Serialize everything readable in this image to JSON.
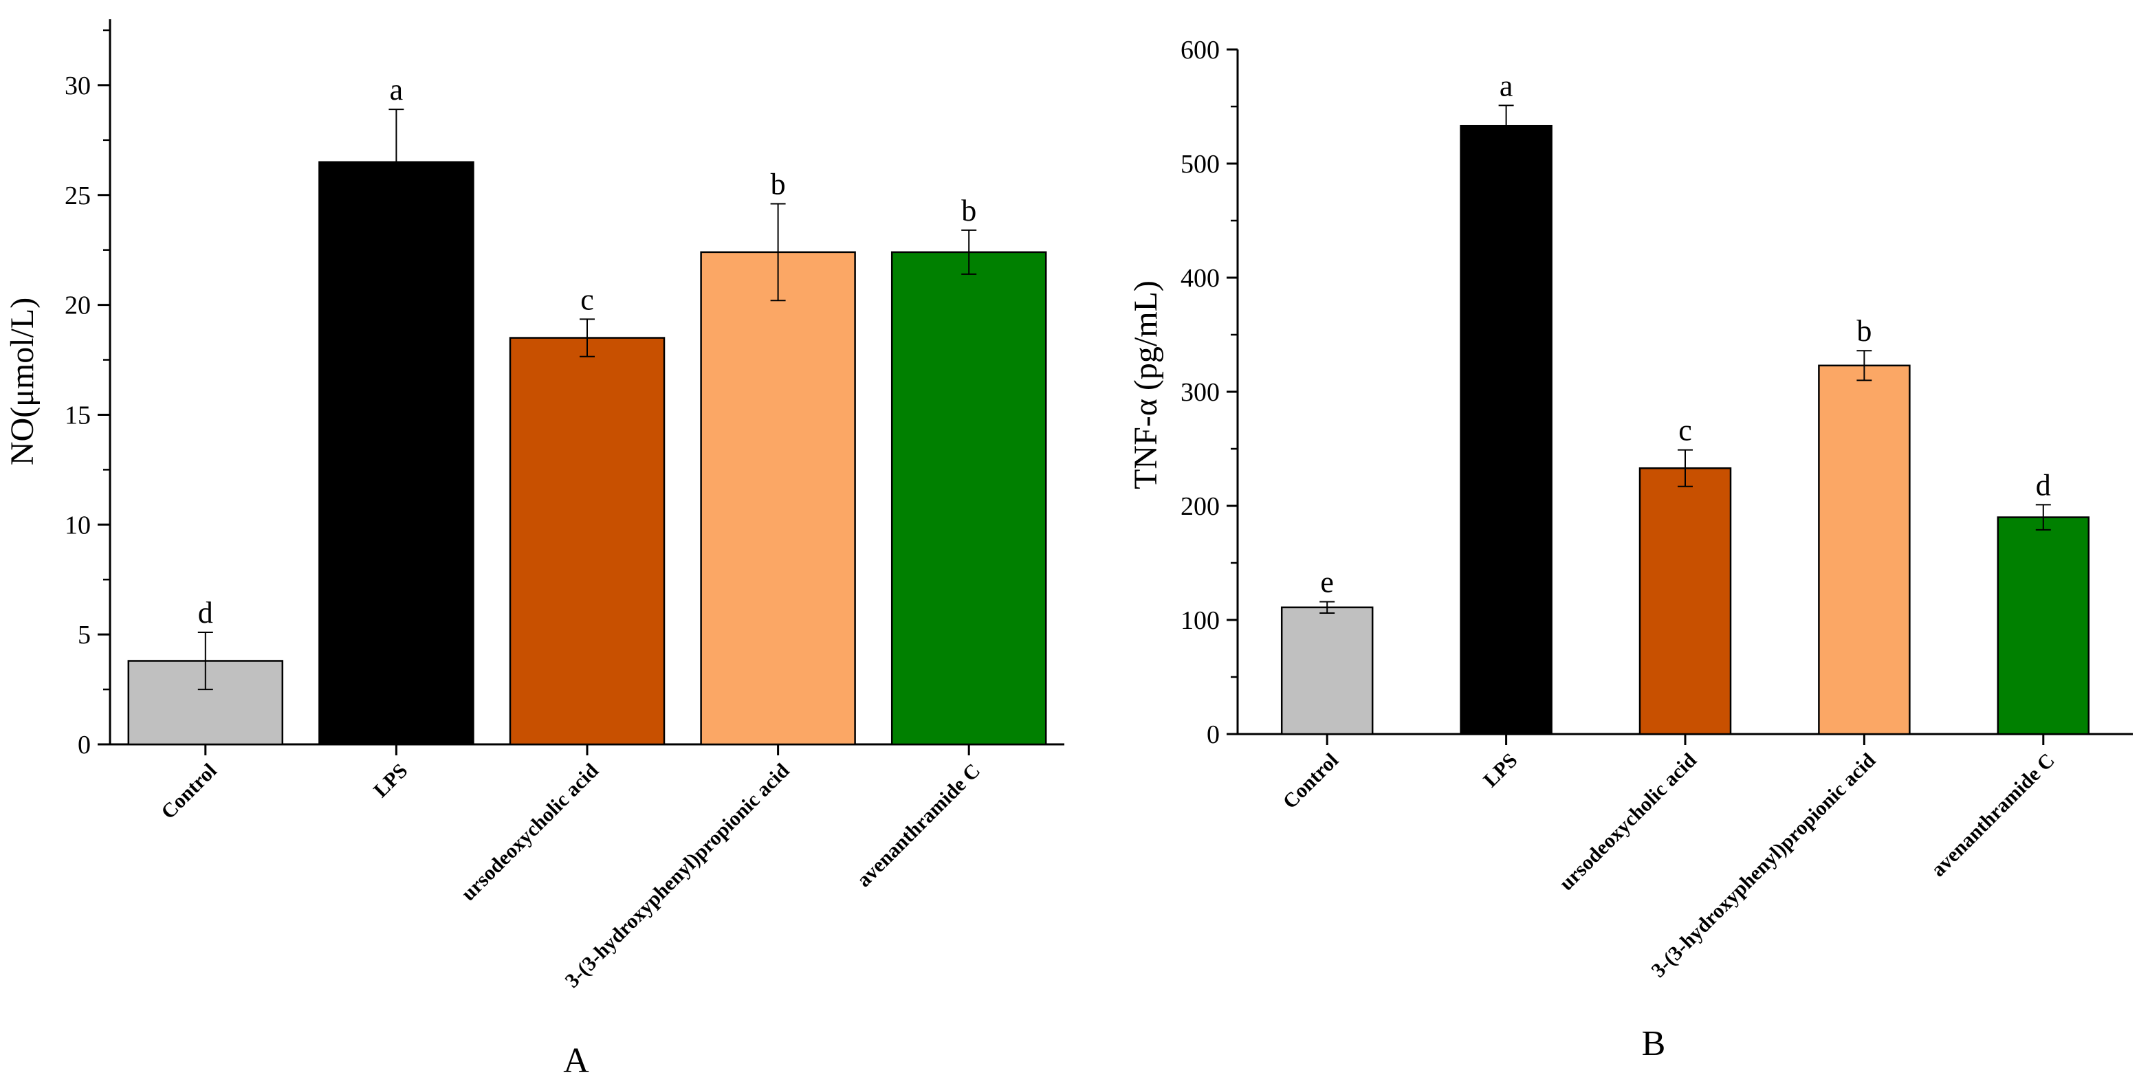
{
  "chart_data": [
    {
      "type": "bar",
      "panel": "A",
      "categories": [
        "Control",
        "LPS",
        "ursodeoxycholic acid",
        "3-(3-hydroxyphenyl)propionic acid",
        "avenanthramide C"
      ],
      "values": [
        3.8,
        26.5,
        18.5,
        22.4,
        22.4
      ],
      "errors": [
        1.3,
        2.4,
        0.85,
        2.2,
        1.0
      ],
      "significance": [
        "d",
        "a",
        "c",
        "b",
        "b"
      ],
      "colors": [
        "#c0c0c0",
        "#000000",
        "#c85000",
        "#fba765",
        "#008000"
      ],
      "ylabel": "NO(μmol/L)",
      "xlabel": "",
      "ylim": [
        0,
        33
      ],
      "yticks": [
        0,
        5,
        10,
        15,
        20,
        25,
        30
      ],
      "ytick_labels": [
        "0",
        "5",
        "10",
        "15",
        "20",
        "25",
        "30"
      ],
      "grid": false
    },
    {
      "type": "bar",
      "panel": "B",
      "categories": [
        "Control",
        "LPS",
        "ursodeoxycholic acid",
        "3-(3-hydroxyphenyl)propionic acid",
        "avenanthramide C"
      ],
      "values": [
        111,
        533,
        233,
        323,
        190
      ],
      "errors": [
        5,
        18,
        16,
        13,
        11
      ],
      "significance": [
        "e",
        "a",
        "c",
        "b",
        "d"
      ],
      "colors": [
        "#c0c0c0",
        "#000000",
        "#c85000",
        "#fba765",
        "#008000"
      ],
      "ylabel": "TNF-α (pg/mL)",
      "xlabel": "",
      "ylim": [
        0,
        600
      ],
      "yticks": [
        0,
        100,
        200,
        300,
        400,
        500,
        600
      ],
      "ytick_labels": [
        "0",
        "100",
        "200",
        "300",
        "400",
        "500",
        "600"
      ],
      "grid": false
    }
  ]
}
